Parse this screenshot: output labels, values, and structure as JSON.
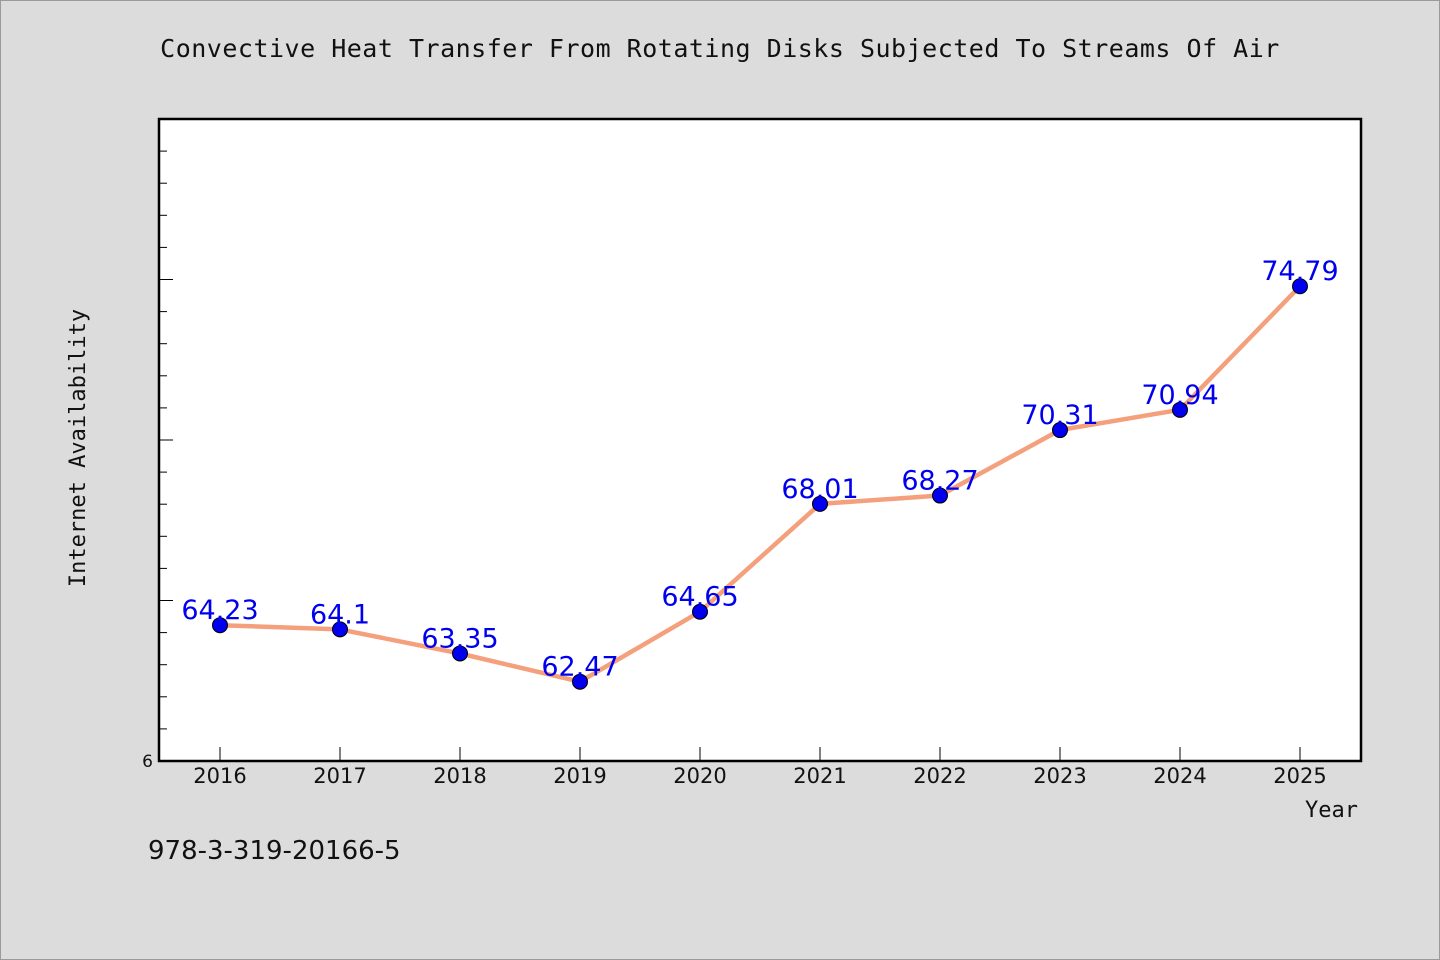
{
  "chart_data": {
    "type": "line",
    "title": "Convective Heat Transfer From Rotating Disks Subjected To Streams Of Air",
    "xlabel": "Year",
    "ylabel": "Internet Availability",
    "x": [
      "2016",
      "2017",
      "2018",
      "2019",
      "2020",
      "2021",
      "2022",
      "2023",
      "2024",
      "2025"
    ],
    "series": [
      {
        "values": [
          64.23,
          64.1,
          63.35,
          62.47,
          64.65,
          68.01,
          68.27,
          70.31,
          70.94,
          74.79
        ],
        "data_labels": [
          "64.23",
          "64.1",
          "63.35",
          "62.47",
          "64.65",
          "68.01",
          "68.27",
          "70.31",
          "70.94",
          "74.79"
        ],
        "line_color": "#f4a07c",
        "marker_color": "#0000ee"
      }
    ],
    "ylim": [
      60,
      80
    ],
    "y_tick_labels_visible": [
      "6"
    ],
    "grid": false,
    "legend": "none",
    "label_color": "#0000ee"
  },
  "footer_text": "978-3-319-20166-5"
}
